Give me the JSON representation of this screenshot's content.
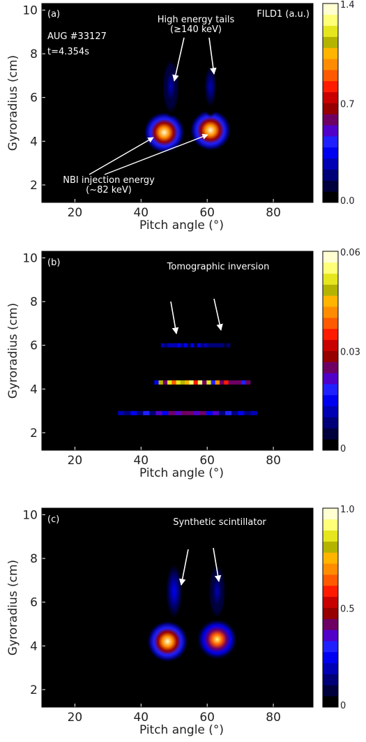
{
  "panels": [
    {
      "panel_label": "(a)",
      "corner_label": "FILD1 (a.u.)",
      "info_lines": [
        "AUG #33127",
        "t=4.354s"
      ],
      "annotations": [
        {
          "text": [
            "High energy tails",
            "(≥140 keV)"
          ]
        },
        {
          "text": [
            "NBI injection energy",
            "(~82 keV)"
          ]
        }
      ],
      "colorbar": {
        "ticks": [
          "1.4",
          "0.7",
          "0.0"
        ]
      }
    },
    {
      "panel_label": "(b)",
      "corner_label": "Tomographic inversion",
      "colorbar": {
        "ticks": [
          "0.06",
          "0.03",
          "0"
        ]
      }
    },
    {
      "panel_label": "(c)",
      "corner_label": "Synthetic scintillator",
      "colorbar": {
        "ticks": [
          "1.0",
          "0.5",
          "0"
        ]
      }
    }
  ],
  "colormap": [
    "#000000",
    "#00003c",
    "#000078",
    "#0000b4",
    "#0000f0",
    "#2020ff",
    "#5000c8",
    "#6e0064",
    "#960000",
    "#c80000",
    "#ff1a00",
    "#ff5a00",
    "#ff8c00",
    "#ffb400",
    "#b4b400",
    "#e6e61e",
    "#ffff78",
    "#ffffd2"
  ],
  "chart_data": [
    {
      "type": "heatmap",
      "title": "FILD1 (a.u.)",
      "xlabel": "Pitch angle (°)",
      "ylabel": "Gyroradius (cm)",
      "xlim": [
        10,
        92
      ],
      "ylim": [
        1.2,
        10.3
      ],
      "xticks": [
        20,
        40,
        60,
        80
      ],
      "yticks": [
        2,
        4,
        6,
        8,
        10
      ],
      "colorbar_range": [
        0.0,
        1.4
      ],
      "features": [
        {
          "label": "beam spot 1",
          "x": 47,
          "y": 4.4,
          "peak": 1.4
        },
        {
          "label": "beam spot 2",
          "x": 61,
          "y": 4.5,
          "peak": 1.4
        },
        {
          "label": "tail 1",
          "x": 49,
          "y": 6.5,
          "peak": 0.3
        },
        {
          "label": "tail 2",
          "x": 61,
          "y": 6.5,
          "peak": 0.25
        }
      ]
    },
    {
      "type": "heatmap",
      "title": "Tomographic inversion",
      "xlabel": "Pitch angle (°)",
      "ylabel": "Gyroradius (cm)",
      "xlim": [
        10,
        92
      ],
      "ylim": [
        1.2,
        10.3
      ],
      "xticks": [
        20,
        40,
        60,
        80
      ],
      "yticks": [
        2,
        4,
        6,
        8,
        10
      ],
      "colorbar_range": [
        0,
        0.06
      ],
      "features": [
        {
          "label": "band at 4.3 cm",
          "x_range": [
            44,
            73
          ],
          "y": 4.3,
          "peak": 0.06
        },
        {
          "label": "band at 2.9 cm",
          "x_range": [
            33,
            75
          ],
          "y": 2.9,
          "peak": 0.03
        },
        {
          "label": "band at 6.0 cm",
          "x_range": [
            46,
            68
          ],
          "y": 6.0,
          "peak": 0.015
        }
      ]
    },
    {
      "type": "heatmap",
      "title": "Synthetic scintillator",
      "xlabel": "Pitch angle (°)",
      "ylabel": "Gyroradius (cm)",
      "xlim": [
        10,
        92
      ],
      "ylim": [
        1.2,
        10.3
      ],
      "xticks": [
        20,
        40,
        60,
        80
      ],
      "yticks": [
        2,
        4,
        6,
        8,
        10
      ],
      "colorbar_range": [
        0,
        1.0
      ],
      "features": [
        {
          "label": "spot 1",
          "x": 48,
          "y": 4.2,
          "peak": 1.0
        },
        {
          "label": "spot 2",
          "x": 63,
          "y": 4.3,
          "peak": 0.9
        },
        {
          "label": "tail 1",
          "x": 50,
          "y": 6.5,
          "peak": 0.25
        },
        {
          "label": "tail 2",
          "x": 63,
          "y": 6.5,
          "peak": 0.2
        }
      ]
    }
  ],
  "axes_text": {
    "xlabel": "Pitch angle (°)",
    "ylabel": "Gyroradius (cm)",
    "xticks": [
      "20",
      "40",
      "60",
      "80"
    ],
    "yticks": [
      "2",
      "4",
      "6",
      "8",
      "10"
    ]
  }
}
